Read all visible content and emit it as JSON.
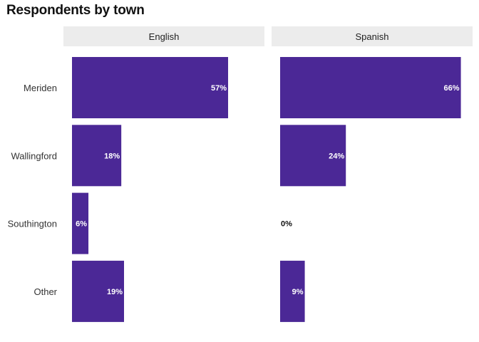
{
  "chart_data": {
    "type": "bar",
    "orientation": "horizontal",
    "title": "Respondents by town",
    "categories": [
      "Meriden",
      "Wallingford",
      "Southington",
      "Other"
    ],
    "facets": [
      {
        "name": "English",
        "values": [
          57,
          18,
          6,
          19
        ],
        "labels": [
          "57%",
          "18%",
          "6%",
          "19%"
        ]
      },
      {
        "name": "Spanish",
        "values": [
          66,
          24,
          0,
          9
        ],
        "labels": [
          "66%",
          "24%",
          "0%",
          "9%"
        ]
      }
    ],
    "xlim": [
      0,
      70
    ],
    "grid": false,
    "legend": "none",
    "colors": {
      "bar": "#4b2896",
      "label_inside": "#ffffff",
      "label_outside": "#111111",
      "strip_bg": "#ececec"
    }
  }
}
